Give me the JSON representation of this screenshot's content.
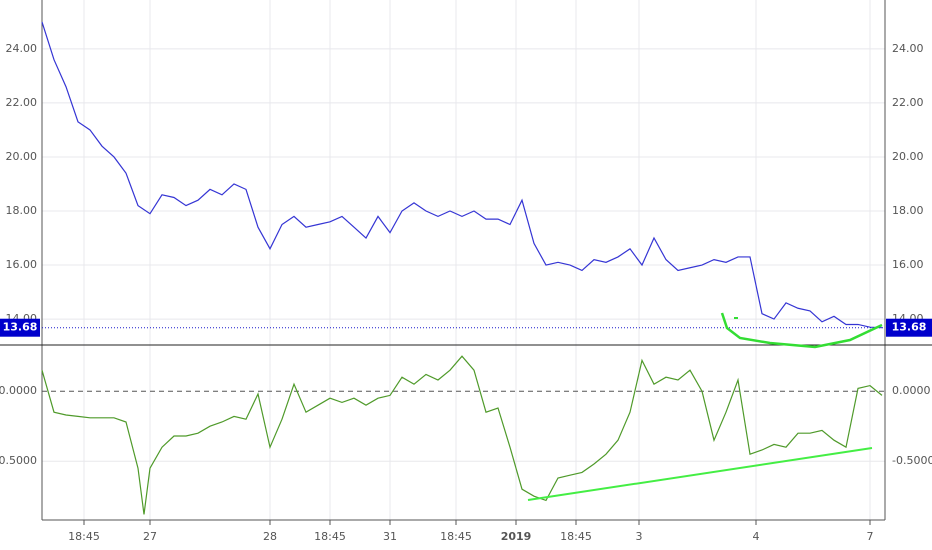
{
  "chart_data": [
    {
      "type": "line",
      "series": [
        {
          "color": "#3535d4",
          "x": [
            0,
            2,
            4,
            6,
            8,
            10,
            12,
            14,
            16,
            18,
            20,
            22,
            24,
            26,
            28,
            30,
            32,
            34,
            36,
            38,
            40,
            42,
            44,
            46,
            48,
            50,
            52,
            54,
            56,
            58,
            60,
            62,
            64,
            66,
            68,
            70,
            72,
            74,
            76,
            78,
            80,
            82,
            84,
            86,
            88,
            90,
            92,
            94,
            96,
            98,
            100,
            102,
            104,
            106,
            108,
            110,
            112,
            114,
            116,
            118,
            120,
            122,
            124,
            126,
            128,
            130,
            132,
            134,
            136,
            138,
            140
          ],
          "values": [
            25.0,
            23.6,
            22.6,
            21.3,
            21.0,
            20.4,
            20.0,
            19.4,
            18.2,
            17.9,
            18.6,
            18.5,
            18.2,
            18.4,
            18.8,
            18.6,
            19.0,
            18.8,
            17.4,
            16.6,
            17.5,
            17.8,
            17.4,
            17.5,
            17.6,
            17.8,
            17.4,
            17.0,
            17.8,
            17.2,
            18.0,
            18.3,
            18.0,
            17.8,
            18.0,
            17.8,
            18.0,
            17.7,
            17.7,
            17.5,
            18.4,
            16.8,
            16.0,
            16.1,
            16.0,
            15.8,
            16.2,
            16.1,
            16.3,
            16.6,
            16.0,
            17.0,
            16.2,
            15.8,
            15.9,
            16.0,
            16.2,
            16.1,
            16.3,
            16.3,
            14.2,
            14.0,
            14.6,
            14.4,
            14.3,
            13.9,
            14.1,
            13.8,
            13.8,
            13.7,
            13.68
          ]
        }
      ],
      "xlim": [
        0,
        140.5
      ],
      "ylim": [
        13.04,
        25.81
      ],
      "yticks": [
        {
          "value": 14,
          "label": "14.00"
        },
        {
          "value": 16,
          "label": "16.00"
        },
        {
          "value": 18,
          "label": "18.00"
        },
        {
          "value": 20,
          "label": "20.00"
        },
        {
          "value": 22,
          "label": "22.00"
        },
        {
          "value": 24,
          "label": "24.00"
        }
      ],
      "price_line": 13.68,
      "grid": true
    },
    {
      "type": "line",
      "series": [
        {
          "color": "#4f9a2a",
          "x": [
            0,
            2,
            4,
            6,
            8,
            10,
            12,
            14,
            16,
            17,
            18,
            20,
            22,
            24,
            26,
            28,
            30,
            32,
            34,
            36,
            38,
            40,
            42,
            44,
            46,
            48,
            50,
            52,
            54,
            56,
            58,
            60,
            62,
            64,
            66,
            68,
            70,
            72,
            74,
            76,
            78,
            80,
            82,
            84,
            86,
            88,
            90,
            92,
            94,
            96,
            98,
            100,
            102,
            104,
            106,
            108,
            110,
            112,
            114,
            116,
            118,
            120,
            122,
            124,
            126,
            128,
            130,
            132,
            134,
            136,
            138,
            140
          ],
          "values": [
            0.15,
            -0.15,
            -0.17,
            -0.18,
            -0.19,
            -0.19,
            -0.19,
            -0.22,
            -0.55,
            -0.88,
            -0.55,
            -0.4,
            -0.32,
            -0.32,
            -0.3,
            -0.25,
            -0.22,
            -0.18,
            -0.2,
            -0.02,
            -0.4,
            -0.2,
            0.05,
            -0.15,
            -0.1,
            -0.05,
            -0.08,
            -0.05,
            -0.1,
            -0.05,
            -0.03,
            0.1,
            0.05,
            0.12,
            0.08,
            0.15,
            0.25,
            0.15,
            -0.15,
            -0.12,
            -0.4,
            -0.7,
            -0.75,
            -0.78,
            -0.62,
            -0.6,
            -0.58,
            -0.52,
            -0.45,
            -0.35,
            -0.15,
            0.22,
            0.05,
            0.1,
            0.08,
            0.15,
            0.0,
            -0.35,
            -0.15,
            0.08,
            -0.45,
            -0.42,
            -0.38,
            -0.4,
            -0.3,
            -0.3,
            -0.28,
            -0.35,
            -0.4,
            0.02,
            0.04,
            -0.03
          ]
        }
      ],
      "xlim": [
        0,
        140.5
      ],
      "ylim": [
        -0.92,
        0.33
      ],
      "yticks": [
        {
          "value": -0.5,
          "label": "-0.5000"
        },
        {
          "value": 0,
          "label": "0.0000"
        }
      ],
      "xticks": [
        {
          "value": 7,
          "label": "18:45"
        },
        {
          "value": 18,
          "label": "27"
        },
        {
          "value": 38,
          "label": "28"
        },
        {
          "value": 48,
          "label": "18:45"
        },
        {
          "value": 58,
          "label": "31"
        },
        {
          "value": 69,
          "label": "18:45"
        },
        {
          "value": 79,
          "label": "2019"
        },
        {
          "value": 89,
          "label": "18:45"
        },
        {
          "value": 99.5,
          "label": "3"
        },
        {
          "value": 119,
          "label": "4"
        },
        {
          "value": 138,
          "label": "7"
        }
      ],
      "grid": true
    }
  ]
}
